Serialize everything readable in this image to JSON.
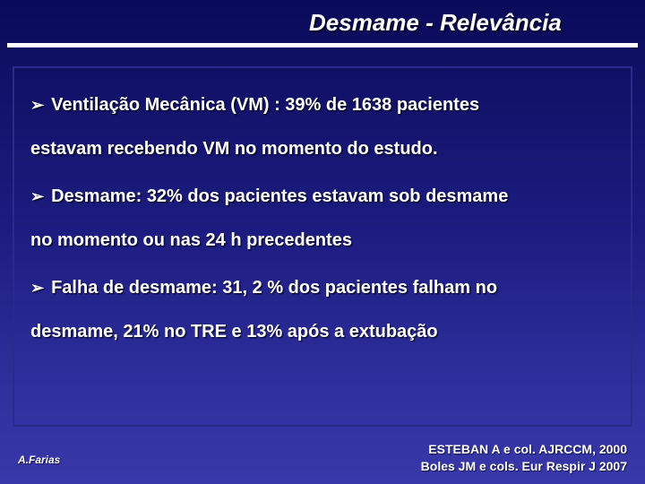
{
  "title": "Desmame - Relevância",
  "bullets": [
    {
      "lead": "Ventilação Mecânica (VM) : 39% de 1638 pacientes",
      "cont": "estavam recebendo VM no momento do estudo."
    },
    {
      "lead": "Desmame: 32% dos pacientes estavam sob desmame",
      "cont": "no momento ou nas 24 h precedentes"
    },
    {
      "lead": "Falha de desmame: 31, 2 % dos pacientes falham no",
      "cont": "desmame, 21% no TRE e 13% após a extubação"
    }
  ],
  "footer_left": "A.Farias",
  "footer_right_line1": "ESTEBAN  A e col. AJRCCM, 2000",
  "footer_right_line2": "Boles JM e cols. Eur Respir J 2007",
  "colors": {
    "bg_top": "#0a0a5a",
    "bg_bottom": "#3838aa",
    "text": "#ffffff",
    "border": "#2a2a8a"
  },
  "arrow_glyph": "➢",
  "title_fontsize": 26,
  "body_fontsize": 20,
  "footer_left_fontsize": 12,
  "footer_right_fontsize": 14
}
